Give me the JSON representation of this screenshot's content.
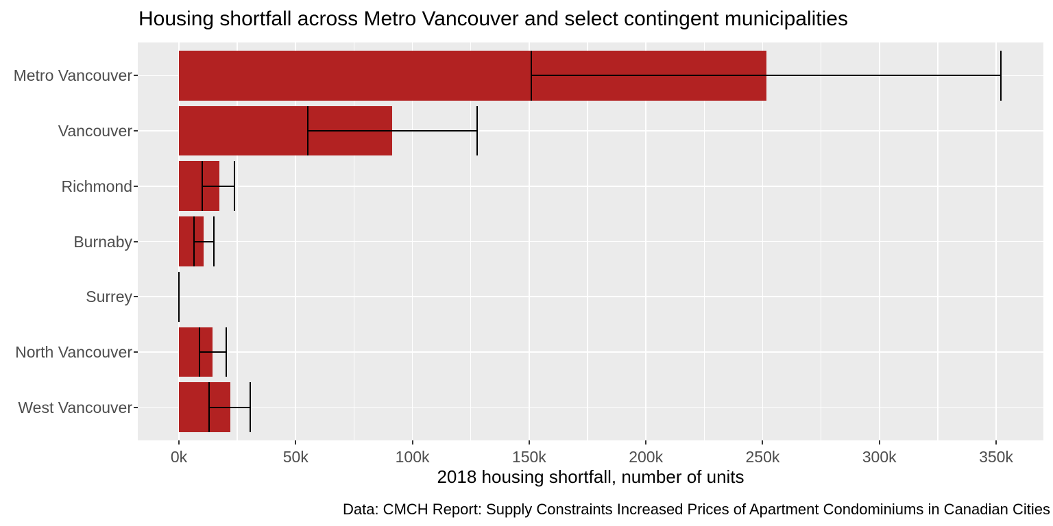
{
  "chart_data": {
    "type": "bar",
    "orientation": "horizontal",
    "title": "Housing shortfall across Metro Vancouver and select contingent municipalities",
    "xlabel": "2018 housing shortfall, number of units",
    "caption": "Data: CMCH Report: Supply Constraints Increased Prices of Apartment Condominiums in Canadian Cities",
    "categories": [
      "Metro Vancouver",
      "Vancouver",
      "Richmond",
      "Burnaby",
      "Surrey",
      "North Vancouver",
      "West Vancouver"
    ],
    "values": [
      251500,
      91200,
      17300,
      10600,
      0,
      14400,
      22000
    ],
    "error_low": [
      151000,
      55200,
      10000,
      6500,
      0,
      8800,
      12900
    ],
    "error_high": [
      352000,
      127600,
      23900,
      14900,
      0,
      20300,
      30500
    ],
    "x_ticks": [
      0,
      50000,
      100000,
      150000,
      200000,
      250000,
      300000,
      350000
    ],
    "x_tick_labels": [
      "0k",
      "50k",
      "100k",
      "150k",
      "200k",
      "250k",
      "300k",
      "350k"
    ],
    "x_minor_ticks": [
      25000,
      75000,
      125000,
      175000,
      225000,
      275000,
      325000
    ],
    "xlim": [
      0,
      352000
    ],
    "legend_position": "none",
    "grid": true,
    "bar_color": "#B22222",
    "panel_background": "#EBEBEB",
    "grid_color": "#FFFFFF",
    "errorbar_color": "#000000",
    "axis_text_color": "#4d4d4d"
  }
}
